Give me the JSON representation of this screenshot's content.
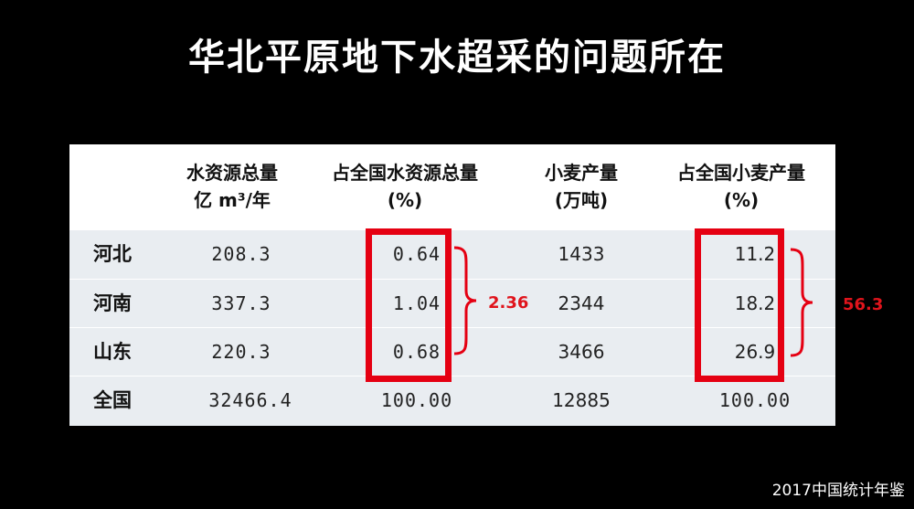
{
  "title": "华北平原地下水超采的问题所在",
  "table": {
    "headers": [
      {
        "line1": "水资源总量",
        "line2": "亿 m³/年"
      },
      {
        "line1": "占全国水资源总量",
        "line2": "(%)"
      },
      {
        "line1": "小麦产量",
        "line2": "(万吨)"
      },
      {
        "line1": "占全国小麦产量",
        "line2": "(%)"
      }
    ],
    "rows": [
      {
        "name": "河北",
        "water": "208.3",
        "water_pct": "0.64",
        "wheat": "1433",
        "wheat_pct": "11.2"
      },
      {
        "name": "河南",
        "water": "337.3",
        "water_pct": "1.04",
        "wheat": "2344",
        "wheat_pct": "18.2"
      },
      {
        "name": "山东",
        "water": "220.3",
        "water_pct": "0.68",
        "wheat": "3466",
        "wheat_pct": "26.9"
      },
      {
        "name": "全国",
        "water": "32466.4",
        "water_pct": "100.00",
        "wheat": "12885",
        "wheat_pct": "100.00"
      }
    ]
  },
  "annotations": {
    "water_sum": "2.36",
    "wheat_sum": "56.3"
  },
  "source": "2017中国统计年鉴",
  "colors": {
    "highlight": "#e50012",
    "background": "#000000",
    "row_bg": "#e9edf1"
  }
}
